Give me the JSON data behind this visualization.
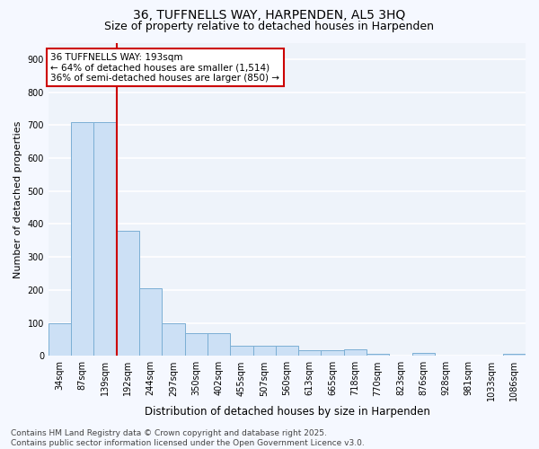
{
  "title_line1": "36, TUFFNELLS WAY, HARPENDEN, AL5 3HQ",
  "title_line2": "Size of property relative to detached houses in Harpenden",
  "xlabel": "Distribution of detached houses by size in Harpenden",
  "ylabel": "Number of detached properties",
  "categories": [
    "34sqm",
    "87sqm",
    "139sqm",
    "192sqm",
    "244sqm",
    "297sqm",
    "350sqm",
    "402sqm",
    "455sqm",
    "507sqm",
    "560sqm",
    "613sqm",
    "665sqm",
    "718sqm",
    "770sqm",
    "823sqm",
    "876sqm",
    "928sqm",
    "981sqm",
    "1033sqm",
    "1086sqm"
  ],
  "values": [
    100,
    710,
    710,
    380,
    205,
    98,
    70,
    70,
    30,
    30,
    30,
    18,
    18,
    20,
    5,
    0,
    8,
    0,
    0,
    0,
    5
  ],
  "bar_color": "#cce0f5",
  "bar_edge_color": "#7bafd4",
  "highlight_line_color": "#cc0000",
  "annotation_box_color": "#cc0000",
  "annotation_text_line1": "36 TUFFNELLS WAY: 193sqm",
  "annotation_text_line2": "← 64% of detached houses are smaller (1,514)",
  "annotation_text_line3": "36% of semi-detached houses are larger (850) →",
  "ylim": [
    0,
    950
  ],
  "yticks": [
    0,
    100,
    200,
    300,
    400,
    500,
    600,
    700,
    800,
    900
  ],
  "bg_color": "#eef3fa",
  "grid_color": "#ffffff",
  "fig_bg_color": "#f5f8ff",
  "footer_text": "Contains HM Land Registry data © Crown copyright and database right 2025.\nContains public sector information licensed under the Open Government Licence v3.0.",
  "title_fontsize": 10,
  "subtitle_fontsize": 9,
  "axis_label_fontsize": 8,
  "tick_fontsize": 7,
  "annotation_fontsize": 7.5,
  "footer_fontsize": 6.5
}
